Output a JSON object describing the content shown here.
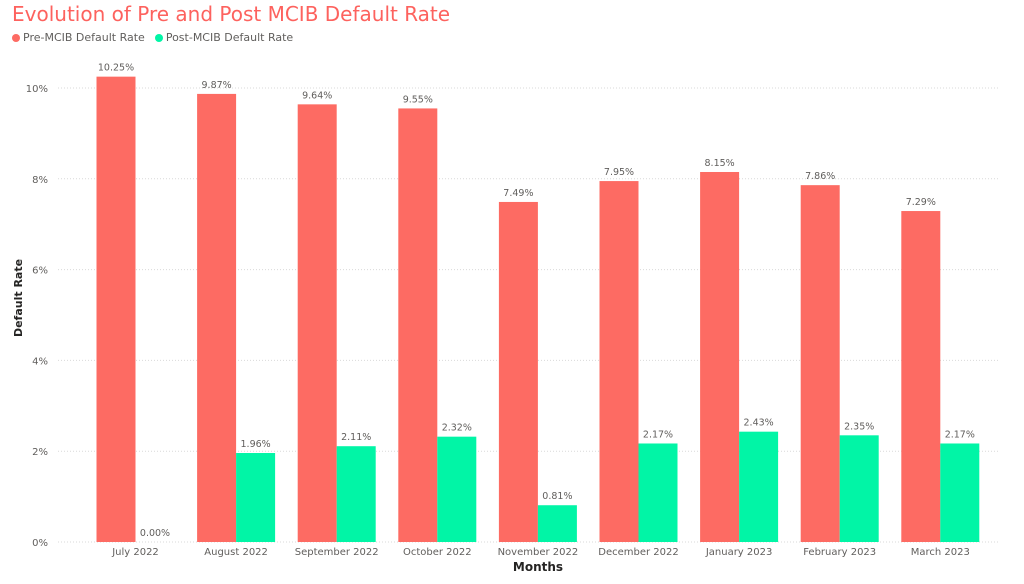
{
  "colors": {
    "pre": "#fd6b63",
    "post": "#01f5a6",
    "title": "#fd625e",
    "grid": "#d9d9d9",
    "text": "#605e5c",
    "axis_title": "#252423"
  },
  "chart_data": {
    "type": "bar",
    "title": "Evolution of Pre and Post MCIB Default Rate",
    "xlabel": "Months",
    "ylabel": "Default Rate",
    "ylim": [
      0,
      0.105
    ],
    "yticks": [
      0,
      0.02,
      0.04,
      0.06,
      0.08,
      0.1
    ],
    "ytick_labels": [
      "0%",
      "2%",
      "4%",
      "6%",
      "8%",
      "10%"
    ],
    "grid": true,
    "legend_position": "top-left",
    "categories": [
      "July 2022",
      "August 2022",
      "September 2022",
      "October 2022",
      "November 2022",
      "December 2022",
      "January 2023",
      "February 2023",
      "March 2023"
    ],
    "series": [
      {
        "name": "Pre-MCIB Default Rate",
        "color": "#fd6b63",
        "values": [
          0.1025,
          0.0987,
          0.0964,
          0.0955,
          0.0749,
          0.0795,
          0.0815,
          0.0786,
          0.0729
        ],
        "labels": [
          "10.25%",
          "9.87%",
          "9.64%",
          "9.55%",
          "7.49%",
          "7.95%",
          "8.15%",
          "7.86%",
          "7.29%"
        ]
      },
      {
        "name": "Post-MCIB Default Rate",
        "color": "#01f5a6",
        "values": [
          0.0,
          0.0196,
          0.0211,
          0.0232,
          0.0081,
          0.0217,
          0.0243,
          0.0235,
          0.0217
        ],
        "labels": [
          "0.00%",
          "1.96%",
          "2.11%",
          "2.32%",
          "0.81%",
          "2.17%",
          "2.43%",
          "2.35%",
          "2.17%"
        ]
      }
    ]
  }
}
